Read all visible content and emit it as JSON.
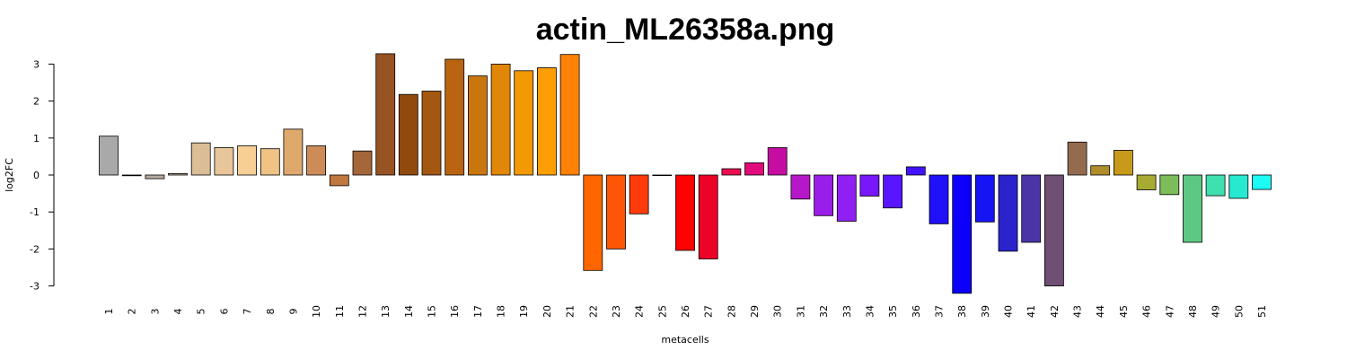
{
  "chart_data": {
    "type": "bar",
    "title": "actin_ML26358a.png",
    "xlabel": "metacells",
    "ylabel": "log2FC",
    "ylim": [
      -3.2,
      3.3
    ],
    "yticks": [
      -3,
      -2,
      -1,
      0,
      1,
      2,
      3
    ],
    "grid": false,
    "categories": [
      "1",
      "2",
      "3",
      "4",
      "5",
      "6",
      "7",
      "8",
      "9",
      "10",
      "11",
      "12",
      "13",
      "14",
      "15",
      "16",
      "17",
      "18",
      "19",
      "20",
      "21",
      "22",
      "23",
      "24",
      "25",
      "26",
      "27",
      "28",
      "29",
      "30",
      "31",
      "32",
      "33",
      "34",
      "35",
      "36",
      "37",
      "38",
      "39",
      "40",
      "41",
      "42",
      "43",
      "44",
      "45",
      "46",
      "47",
      "48",
      "49",
      "50",
      "51"
    ],
    "values": [
      1.05,
      -0.02,
      -0.1,
      0.04,
      0.87,
      0.74,
      0.79,
      0.71,
      1.24,
      0.79,
      -0.29,
      0.65,
      3.28,
      2.18,
      2.27,
      3.13,
      2.68,
      3.0,
      2.82,
      2.9,
      3.26,
      -2.58,
      -2.0,
      -1.05,
      -0.01,
      -2.04,
      -2.27,
      0.17,
      0.33,
      0.74,
      -0.65,
      -1.1,
      -1.25,
      -0.57,
      -0.89,
      0.22,
      -1.32,
      -3.2,
      -1.27,
      -2.06,
      -1.82,
      -3.0,
      0.89,
      0.25,
      0.67,
      -0.4,
      -0.53,
      -1.82,
      -0.56,
      -0.63,
      -0.39
    ],
    "colors": [
      "#a9a9a9",
      "#7a7a7a",
      "#b8a9a0",
      "#c9b09a",
      "#dcbe96",
      "#e8c59a",
      "#f7cf95",
      "#f0c283",
      "#dfa86d",
      "#cd8c57",
      "#bf7840",
      "#a5663a",
      "#985322",
      "#904a0e",
      "#a45711",
      "#ba6411",
      "#ca760f",
      "#e08707",
      "#f29903",
      "#fd9f04",
      "#ff8105",
      "#ff6600",
      "#ff5506",
      "#ff3b0c",
      "#fa1a10",
      "#ff0200",
      "#ec0328",
      "#ec0c50",
      "#e10b7b",
      "#c60da2",
      "#b618c9",
      "#9a1eea",
      "#901ff3",
      "#7916fb",
      "#5915ff",
      "#4012fe",
      "#2011f9",
      "#0c00fb",
      "#1613f4",
      "#2a23cc",
      "#4b35a6",
      "#6f4f73",
      "#956b50",
      "#b08d2b",
      "#c79a1a",
      "#a8ab32",
      "#7dbc5a",
      "#5cc883",
      "#3ee0b0",
      "#27e9d2",
      "#1cfcf4"
    ]
  }
}
